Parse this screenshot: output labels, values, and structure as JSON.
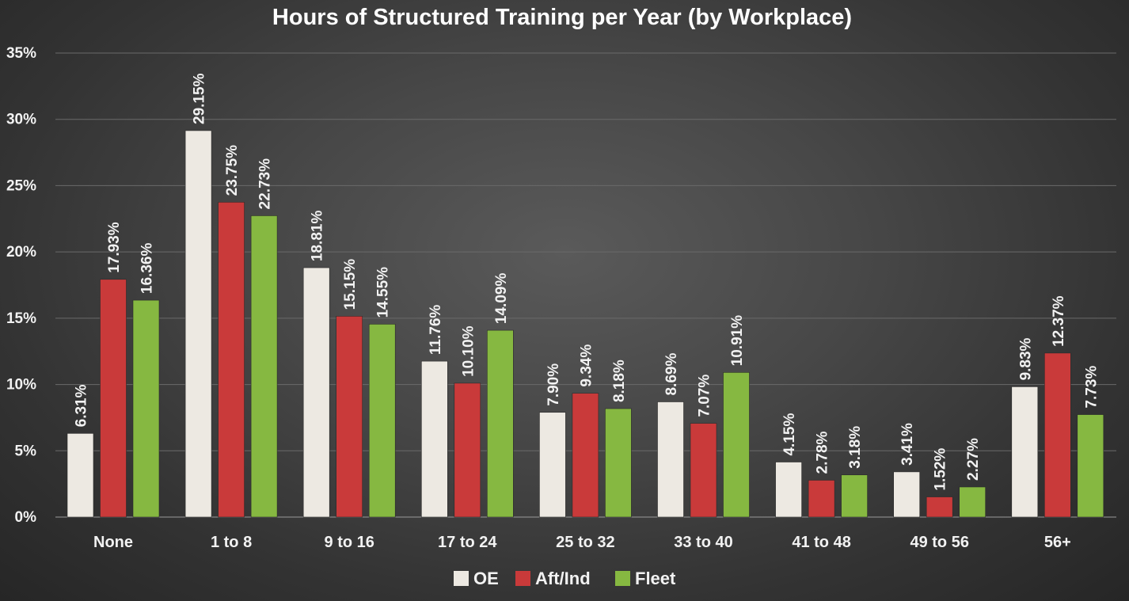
{
  "chart_data": {
    "type": "bar",
    "title": "Hours of Structured Training per Year (by Workplace)",
    "xlabel": "",
    "ylabel": "",
    "ylim": [
      0,
      35
    ],
    "yticks": [
      "0%",
      "5%",
      "10%",
      "15%",
      "20%",
      "25%",
      "30%",
      "35%"
    ],
    "ytick_values": [
      0,
      5,
      10,
      15,
      20,
      25,
      30,
      35
    ],
    "grid": true,
    "legend_position": "bottom",
    "categories": [
      "None",
      "1 to 8",
      "9 to 16",
      "17 to 24",
      "25 to 32",
      "33 to 40",
      "41 to 48",
      "49 to 56",
      "56+"
    ],
    "series": [
      {
        "name": "OE",
        "color": "#ede9e2",
        "values": [
          6.31,
          29.15,
          18.81,
          11.76,
          7.9,
          8.69,
          4.15,
          3.41,
          9.83
        ],
        "labels": [
          "6.31%",
          "29.15%",
          "18.81%",
          "11.76%",
          "7.90%",
          "8.69%",
          "4.15%",
          "3.41%",
          "9.83%"
        ]
      },
      {
        "name": "Aft/Ind",
        "color": "#c93a3a",
        "values": [
          17.93,
          23.75,
          15.15,
          10.1,
          9.34,
          7.07,
          2.78,
          1.52,
          12.37
        ],
        "labels": [
          "17.93%",
          "23.75%",
          "15.15%",
          "10.10%",
          "9.34%",
          "7.07%",
          "2.78%",
          "1.52%",
          "12.37%"
        ]
      },
      {
        "name": "Fleet",
        "color": "#86b841",
        "values": [
          16.36,
          22.73,
          14.55,
          14.09,
          8.18,
          10.91,
          3.18,
          2.27,
          7.73
        ],
        "labels": [
          "16.36%",
          "22.73%",
          "14.55%",
          "14.09%",
          "8.18%",
          "10.91%",
          "3.18%",
          "2.27%",
          "7.73%"
        ]
      }
    ]
  }
}
